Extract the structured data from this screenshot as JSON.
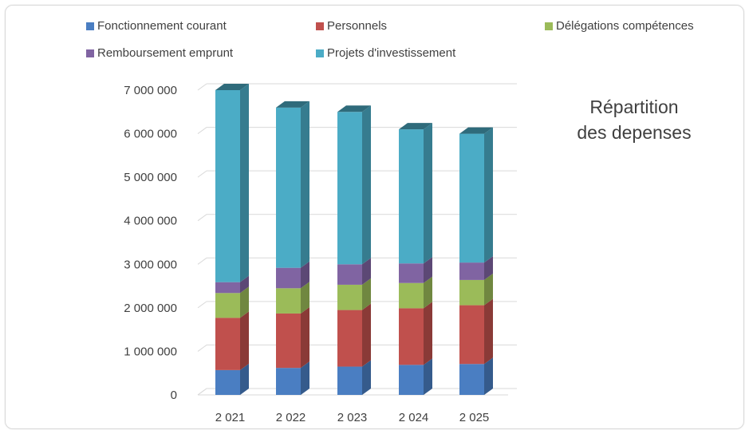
{
  "chart_data": {
    "type": "bar",
    "stacked": true,
    "three_d": true,
    "title_lines": [
      "Répartition",
      "des depenses"
    ],
    "categories": [
      "2 021",
      "2 022",
      "2 023",
      "2 024",
      "2 025"
    ],
    "series": [
      {
        "name": "Fonctionnement courant",
        "color": "#4a7ec2",
        "values": [
          570000,
          620000,
          650000,
          690000,
          710000
        ]
      },
      {
        "name": "Personnels",
        "color": "#c0504d",
        "values": [
          1200000,
          1250000,
          1300000,
          1300000,
          1350000
        ]
      },
      {
        "name": "Délégations compétences",
        "color": "#9bbb59",
        "values": [
          570000,
          580000,
          580000,
          580000,
          580000
        ]
      },
      {
        "name": "Remboursement emprunt",
        "color": "#8064a2",
        "values": [
          250000,
          470000,
          470000,
          450000,
          400000
        ]
      },
      {
        "name": "Projets d'investissement",
        "color": "#4bacc6",
        "values": [
          4410000,
          3680000,
          3500000,
          3080000,
          2960000
        ]
      }
    ],
    "yticks": [
      "0",
      "1 000 000",
      "2 000 000",
      "3 000 000",
      "4 000 000",
      "5 000 000",
      "6 000 000",
      "7 000 000"
    ],
    "ylim": [
      0,
      7000000
    ],
    "grid": true,
    "legend_position": "top"
  }
}
